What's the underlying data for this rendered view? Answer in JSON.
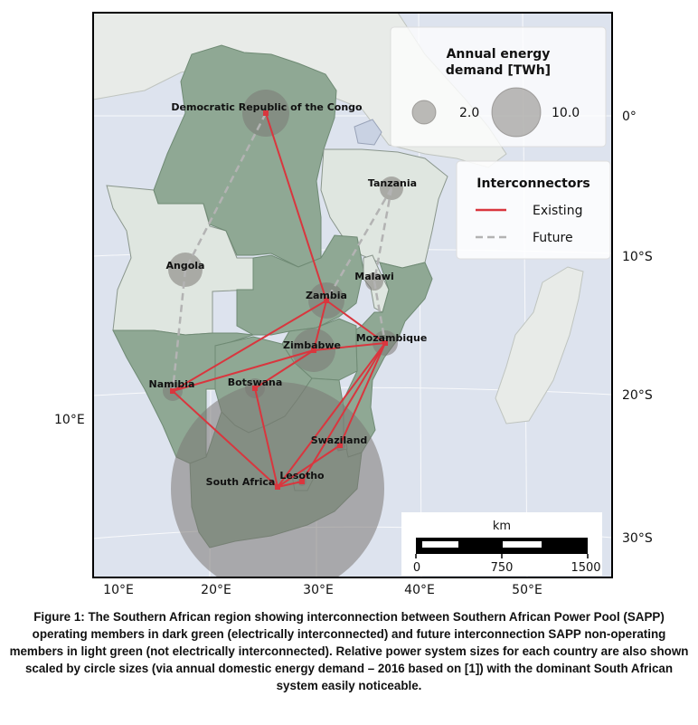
{
  "map": {
    "lon_ticks": [
      "10°E",
      "20°E",
      "30°E",
      "40°E",
      "50°E"
    ],
    "lat_ticks": [
      "0°",
      "10°S",
      "20°S",
      "30°S"
    ],
    "side_lon_label": "10°E",
    "countries": {
      "drc": "Democratic Republic of the Congo",
      "tanzania": "Tanzania",
      "angola": "Angola",
      "malawi": "Malawi",
      "zambia": "Zambia",
      "zimbabwe": "Zimbabwe",
      "mozambique": "Mozambique",
      "namibia": "Namibia",
      "botswana": "Botswana",
      "swaziland": "Swaziland",
      "lesotho": "Lesotho",
      "south_africa": "South Africa"
    },
    "colors": {
      "operating": "#8fa894",
      "non_operating": "#dfe6e0",
      "ocean": "#dde3ee",
      "existing_line": "#d9363e",
      "future_line": "#b3b3b3",
      "bubble": "#7c7874"
    }
  },
  "legend_energy": {
    "title_line1": "Annual energy",
    "title_line2": "demand [TWh]",
    "small_label": "2.0",
    "large_label": "10.0"
  },
  "legend_lines": {
    "title": "Interconnectors",
    "existing": "Existing",
    "future": "Future"
  },
  "scalebar": {
    "unit": "km",
    "labels": [
      "0",
      "750",
      "1500"
    ]
  },
  "caption": "Figure 1: The Southern African region showing interconnection between Southern African Power Pool (SAPP) operating members in dark green (electrically interconnected) and future interconnection SAPP non-operating members in light green (not electrically interconnected). Relative power system sizes for each country are also shown scaled by circle sizes (via annual domestic energy demand – 2016 based on [1]) with the dominant South African system easily noticeable."
}
